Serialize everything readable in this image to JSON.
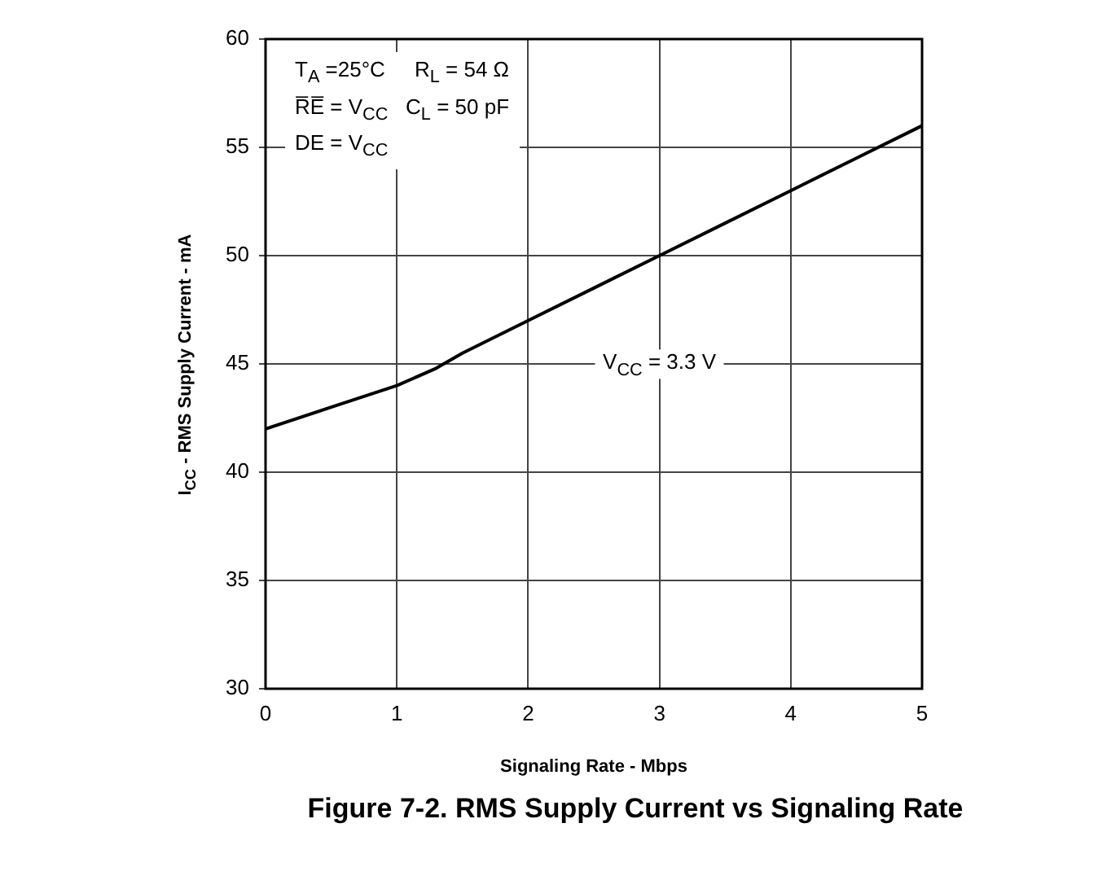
{
  "chart_data": {
    "type": "line",
    "title": "Figure 7-2. RMS Supply Current vs Signaling Rate",
    "xlabel": "Signaling Rate - Mbps",
    "ylabel": "I$_{CC}$ - RMS Supply Current - mA",
    "x": [
      0,
      0.5,
      1,
      1.3,
      1.5,
      2,
      2.5,
      3,
      3.5,
      4,
      4.5,
      5
    ],
    "series": [
      {
        "color": "#000000",
        "values": [
          42,
          43,
          44,
          44.8,
          45.5,
          47,
          48.5,
          50,
          51.5,
          53,
          54.5,
          56
        ]
      }
    ],
    "xlim": [
      0,
      5
    ],
    "xticks": [
      0,
      1,
      2,
      3,
      4,
      5
    ],
    "ylim": [
      30,
      60
    ],
    "yticks": [
      30,
      35,
      40,
      45,
      50,
      55,
      60
    ],
    "grid": true,
    "legend": false,
    "marker": "none",
    "line_style": "solid",
    "annotations": [
      "T$_{A}$ =25°C     R$_{L}$ = 54 Ω",
      "R̅E̅ = V$_{CC}$   C$_{L}$ = 50 pF",
      "DE = V$_{CC}$",
      "V$_{CC}$ = 3.3 V"
    ]
  }
}
